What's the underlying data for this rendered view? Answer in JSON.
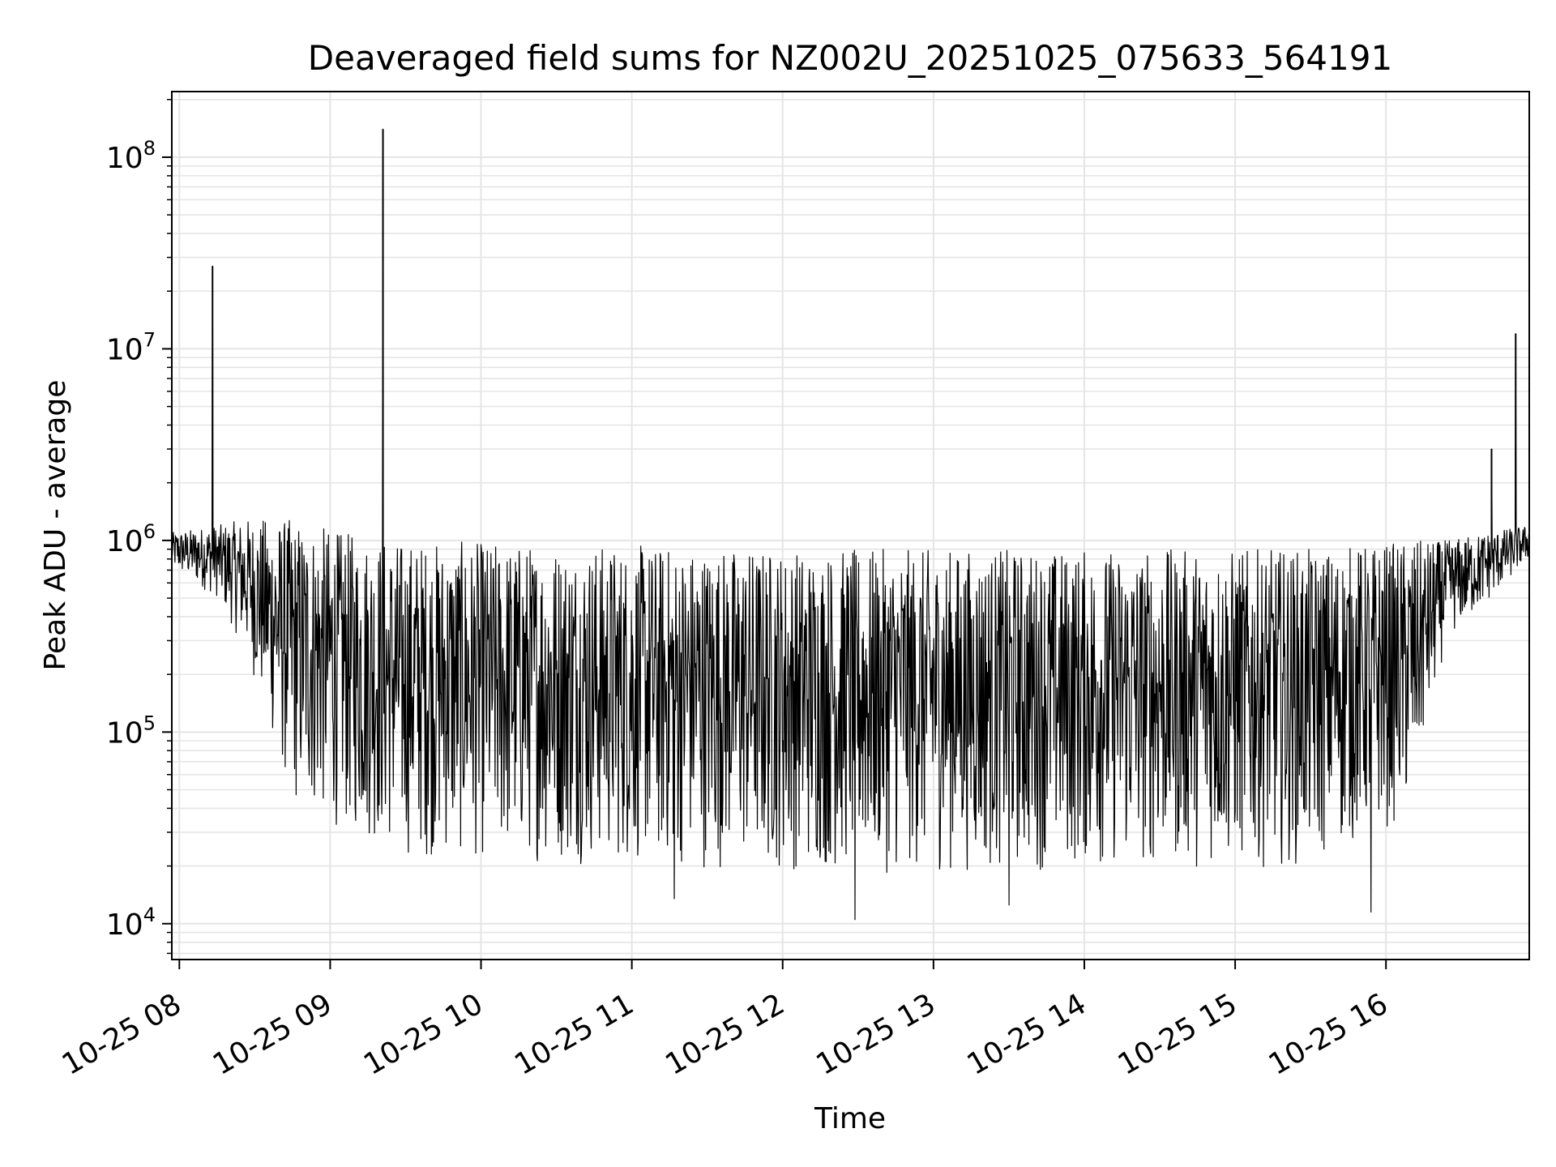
{
  "chart_data": {
    "type": "line",
    "title": "Deaveraged field sums for NZ002U_20251025_075633_564191",
    "xlabel": "Time",
    "ylabel": "Peak ADU - average",
    "yscale": "log",
    "ylim": [
      6500,
      220000000
    ],
    "xlim_hours": [
      7.95,
      16.95
    ],
    "grid": true,
    "line_color": "#000000",
    "grid_color": "#e5e5e5",
    "x_ticks": [
      {
        "hour": 8,
        "label": "10-25 08"
      },
      {
        "hour": 9,
        "label": "10-25 09"
      },
      {
        "hour": 10,
        "label": "10-25 10"
      },
      {
        "hour": 11,
        "label": "10-25 11"
      },
      {
        "hour": 12,
        "label": "10-25 12"
      },
      {
        "hour": 13,
        "label": "10-25 13"
      },
      {
        "hour": 14,
        "label": "10-25 14"
      },
      {
        "hour": 15,
        "label": "10-25 15"
      },
      {
        "hour": 16,
        "label": "10-25 16"
      }
    ],
    "y_ticks": [
      {
        "value": 10000,
        "base": "10",
        "exp": "4"
      },
      {
        "value": 100000,
        "base": "10",
        "exp": "5"
      },
      {
        "value": 1000000,
        "base": "10",
        "exp": "6"
      },
      {
        "value": 10000000,
        "base": "10",
        "exp": "7"
      },
      {
        "value": 100000000,
        "base": "10",
        "exp": "8"
      }
    ],
    "envelope": [
      {
        "hour": 7.95,
        "low": 700000,
        "high": 1100000
      },
      {
        "hour": 8.25,
        "low": 500000,
        "high": 1200000
      },
      {
        "hour": 8.45,
        "low": 250000,
        "high": 1300000
      },
      {
        "hour": 8.75,
        "low": 40000,
        "high": 1300000
      },
      {
        "hour": 9.1,
        "low": 30000,
        "high": 1100000
      },
      {
        "hour": 9.5,
        "low": 22000,
        "high": 1000000
      },
      {
        "hour": 12.5,
        "low": 18000,
        "high": 900000
      },
      {
        "hour": 15.5,
        "low": 20000,
        "high": 900000
      },
      {
        "hour": 16.15,
        "low": 35000,
        "high": 1000000
      },
      {
        "hour": 16.4,
        "low": 300000,
        "high": 1000000
      },
      {
        "hour": 16.65,
        "low": 450000,
        "high": 1100000
      },
      {
        "hour": 16.95,
        "low": 800000,
        "high": 1200000
      }
    ],
    "spikes": [
      {
        "hour": 8.22,
        "value": 27000000
      },
      {
        "hour": 9.35,
        "value": 140000000
      },
      {
        "hour": 16.7,
        "value": 3000000
      },
      {
        "hour": 16.86,
        "value": 12000000
      }
    ],
    "dips": [
      {
        "hour": 12.48,
        "value": 10500
      },
      {
        "hour": 15.9,
        "value": 11500
      },
      {
        "hour": 13.5,
        "value": 12500
      },
      {
        "hour": 11.28,
        "value": 13500
      }
    ]
  }
}
